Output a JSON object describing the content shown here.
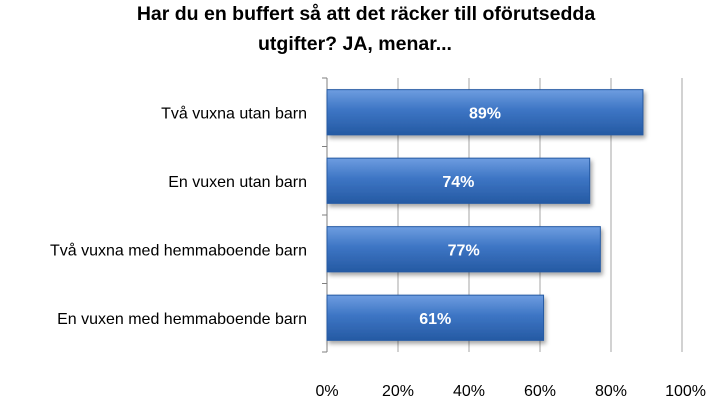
{
  "colors": {
    "bar_fill": "#3d75c4",
    "bar_light": "#6e9de0",
    "bar_dark": "#255aa3",
    "bar_label": "#ffffff",
    "gridline": "#a6a6a6",
    "axis": "#7f7f7f",
    "text": "#000000"
  },
  "chart_data": {
    "type": "bar",
    "orientation": "horizontal",
    "title_lines": [
      "Har du en buffert så att det räcker till oförutsedda",
      "utgifter? JA, menar..."
    ],
    "categories": [
      "Två vuxna utan barn",
      "En vuxen utan barn",
      "Två vuxna med hemmaboende barn",
      "En vuxen med hemmaboende barn"
    ],
    "values": [
      89,
      74,
      77,
      61
    ],
    "data_labels": [
      "89%",
      "74%",
      "77%",
      "61%"
    ],
    "xlim": [
      0,
      100
    ],
    "xticks": [
      0,
      20,
      40,
      60,
      80,
      100
    ],
    "xtick_labels": [
      "0%",
      "20%",
      "40%",
      "60%",
      "80%",
      "100%"
    ],
    "grid": true,
    "legend": "none"
  }
}
